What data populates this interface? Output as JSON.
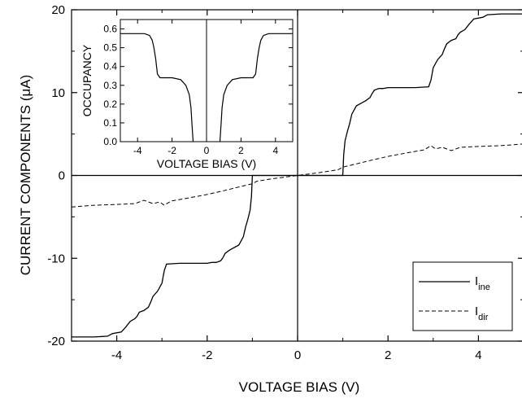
{
  "chart_data": {
    "type": "line",
    "xlabel": "VOLTAGE BIAS (V)",
    "ylabel": "CURRENT COMPONENTS (μA)",
    "xlim": [
      -5,
      5
    ],
    "ylim": [
      -20,
      20
    ],
    "xticks": [
      -4,
      -2,
      0,
      2,
      4
    ],
    "yticks": [
      -20,
      -10,
      0,
      10,
      20
    ],
    "legend_position": "bottom-right",
    "series": [
      {
        "name": "I",
        "subscript": "ine",
        "style": "solid",
        "color": "#000000",
        "x": [
          1.0,
          1.02,
          1.05,
          1.1,
          1.15,
          1.2,
          1.3,
          1.5,
          1.6,
          1.65,
          1.7,
          1.8,
          1.9,
          2.0,
          2.2,
          2.6,
          2.9,
          2.95,
          3.0,
          3.05,
          3.1,
          3.2,
          3.25,
          3.3,
          3.4,
          3.5,
          3.55,
          3.6,
          3.7,
          3.8,
          3.9,
          4.1,
          4.2,
          4.5,
          5.0
        ],
        "y": [
          0.0,
          2.5,
          4.2,
          5.3,
          6.2,
          7.4,
          8.4,
          9.0,
          9.4,
          9.9,
          10.3,
          10.5,
          10.5,
          10.6,
          10.6,
          10.6,
          10.7,
          11.5,
          13.0,
          13.5,
          14.0,
          14.6,
          15.3,
          15.9,
          16.3,
          16.5,
          17.0,
          17.3,
          17.6,
          18.3,
          18.9,
          19.1,
          19.4,
          19.5,
          19.5
        ]
      },
      {
        "name": "I",
        "subscript": "dir",
        "style": "dashed",
        "color": "#000000",
        "x": [
          0.0,
          0.5,
          0.9,
          1.0,
          1.3,
          1.6,
          2.0,
          2.4,
          2.8,
          2.95,
          3.05,
          3.2,
          3.4,
          3.6,
          4.0,
          4.5,
          5.0
        ],
        "y": [
          0.0,
          0.35,
          0.7,
          1.0,
          1.4,
          1.8,
          2.3,
          2.7,
          3.1,
          3.6,
          3.2,
          3.4,
          3.0,
          3.4,
          3.5,
          3.6,
          3.8
        ]
      }
    ],
    "inset": {
      "type": "line",
      "xlabel": "VOLTAGE BIAS (V)",
      "ylabel": "OCCUPANCY",
      "xlim": [
        -5,
        5
      ],
      "ylim": [
        0,
        0.65
      ],
      "xticks": [
        -4,
        -2,
        0,
        2,
        4
      ],
      "yticks": [
        0.0,
        0.1,
        0.2,
        0.3,
        0.4,
        0.5,
        0.6
      ],
      "ytick_labels": [
        "0.0",
        "0.1",
        "0.2",
        "0.3",
        "0.4",
        "0.5",
        "0.6"
      ],
      "series": [
        {
          "style": "solid",
          "color": "#000000",
          "x": [
            0.78,
            0.85,
            0.9,
            1.0,
            1.2,
            1.5,
            2.0,
            2.4,
            2.7,
            2.85,
            2.95,
            3.05,
            3.15,
            3.3,
            3.6,
            4.0,
            4.5,
            5.0
          ],
          "y": [
            0.0,
            0.1,
            0.18,
            0.25,
            0.3,
            0.33,
            0.34,
            0.34,
            0.34,
            0.36,
            0.44,
            0.5,
            0.54,
            0.565,
            0.575,
            0.575,
            0.575,
            0.575
          ]
        }
      ]
    }
  }
}
